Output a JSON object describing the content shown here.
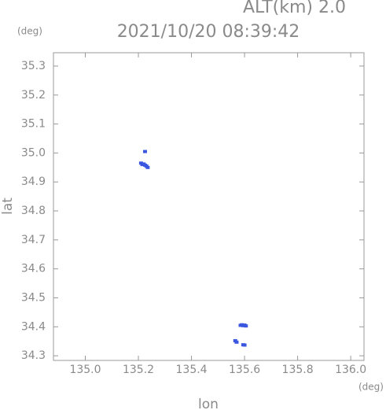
{
  "chart_data": {
    "type": "scatter",
    "title": "2021/10/20 08:39:42",
    "subtitle": "ALT(km) 2.0",
    "y_unit": "(deg)",
    "x_unit": "(deg)",
    "x_label": "lon",
    "y_label": "lat",
    "color": "#3b57e0",
    "xlim": [
      134.88,
      136.05
    ],
    "ylim": [
      34.284,
      35.346
    ],
    "xticks": [
      {
        "value": 135.0,
        "label": "135.0"
      },
      135.2,
      135.4,
      135.6,
      135.8,
      {
        "value": 136.0,
        "label": "136.0"
      }
    ],
    "yticks": [
      34.3,
      34.4,
      34.5,
      34.6,
      34.7,
      34.8,
      34.9,
      {
        "value": 35.0,
        "label": "35.0"
      },
      35.1,
      35.2,
      35.3
    ],
    "x": [
      135.225,
      135.21,
      135.215,
      135.22,
      135.225,
      135.23,
      135.235,
      135.585,
      135.59,
      135.595,
      135.6,
      135.605,
      135.565,
      135.57,
      135.595,
      135.6
    ],
    "y": [
      35.005,
      34.965,
      34.96,
      34.962,
      34.958,
      34.955,
      34.95,
      34.405,
      34.407,
      34.404,
      34.406,
      34.403,
      34.352,
      34.347,
      34.338,
      34.337
    ]
  }
}
